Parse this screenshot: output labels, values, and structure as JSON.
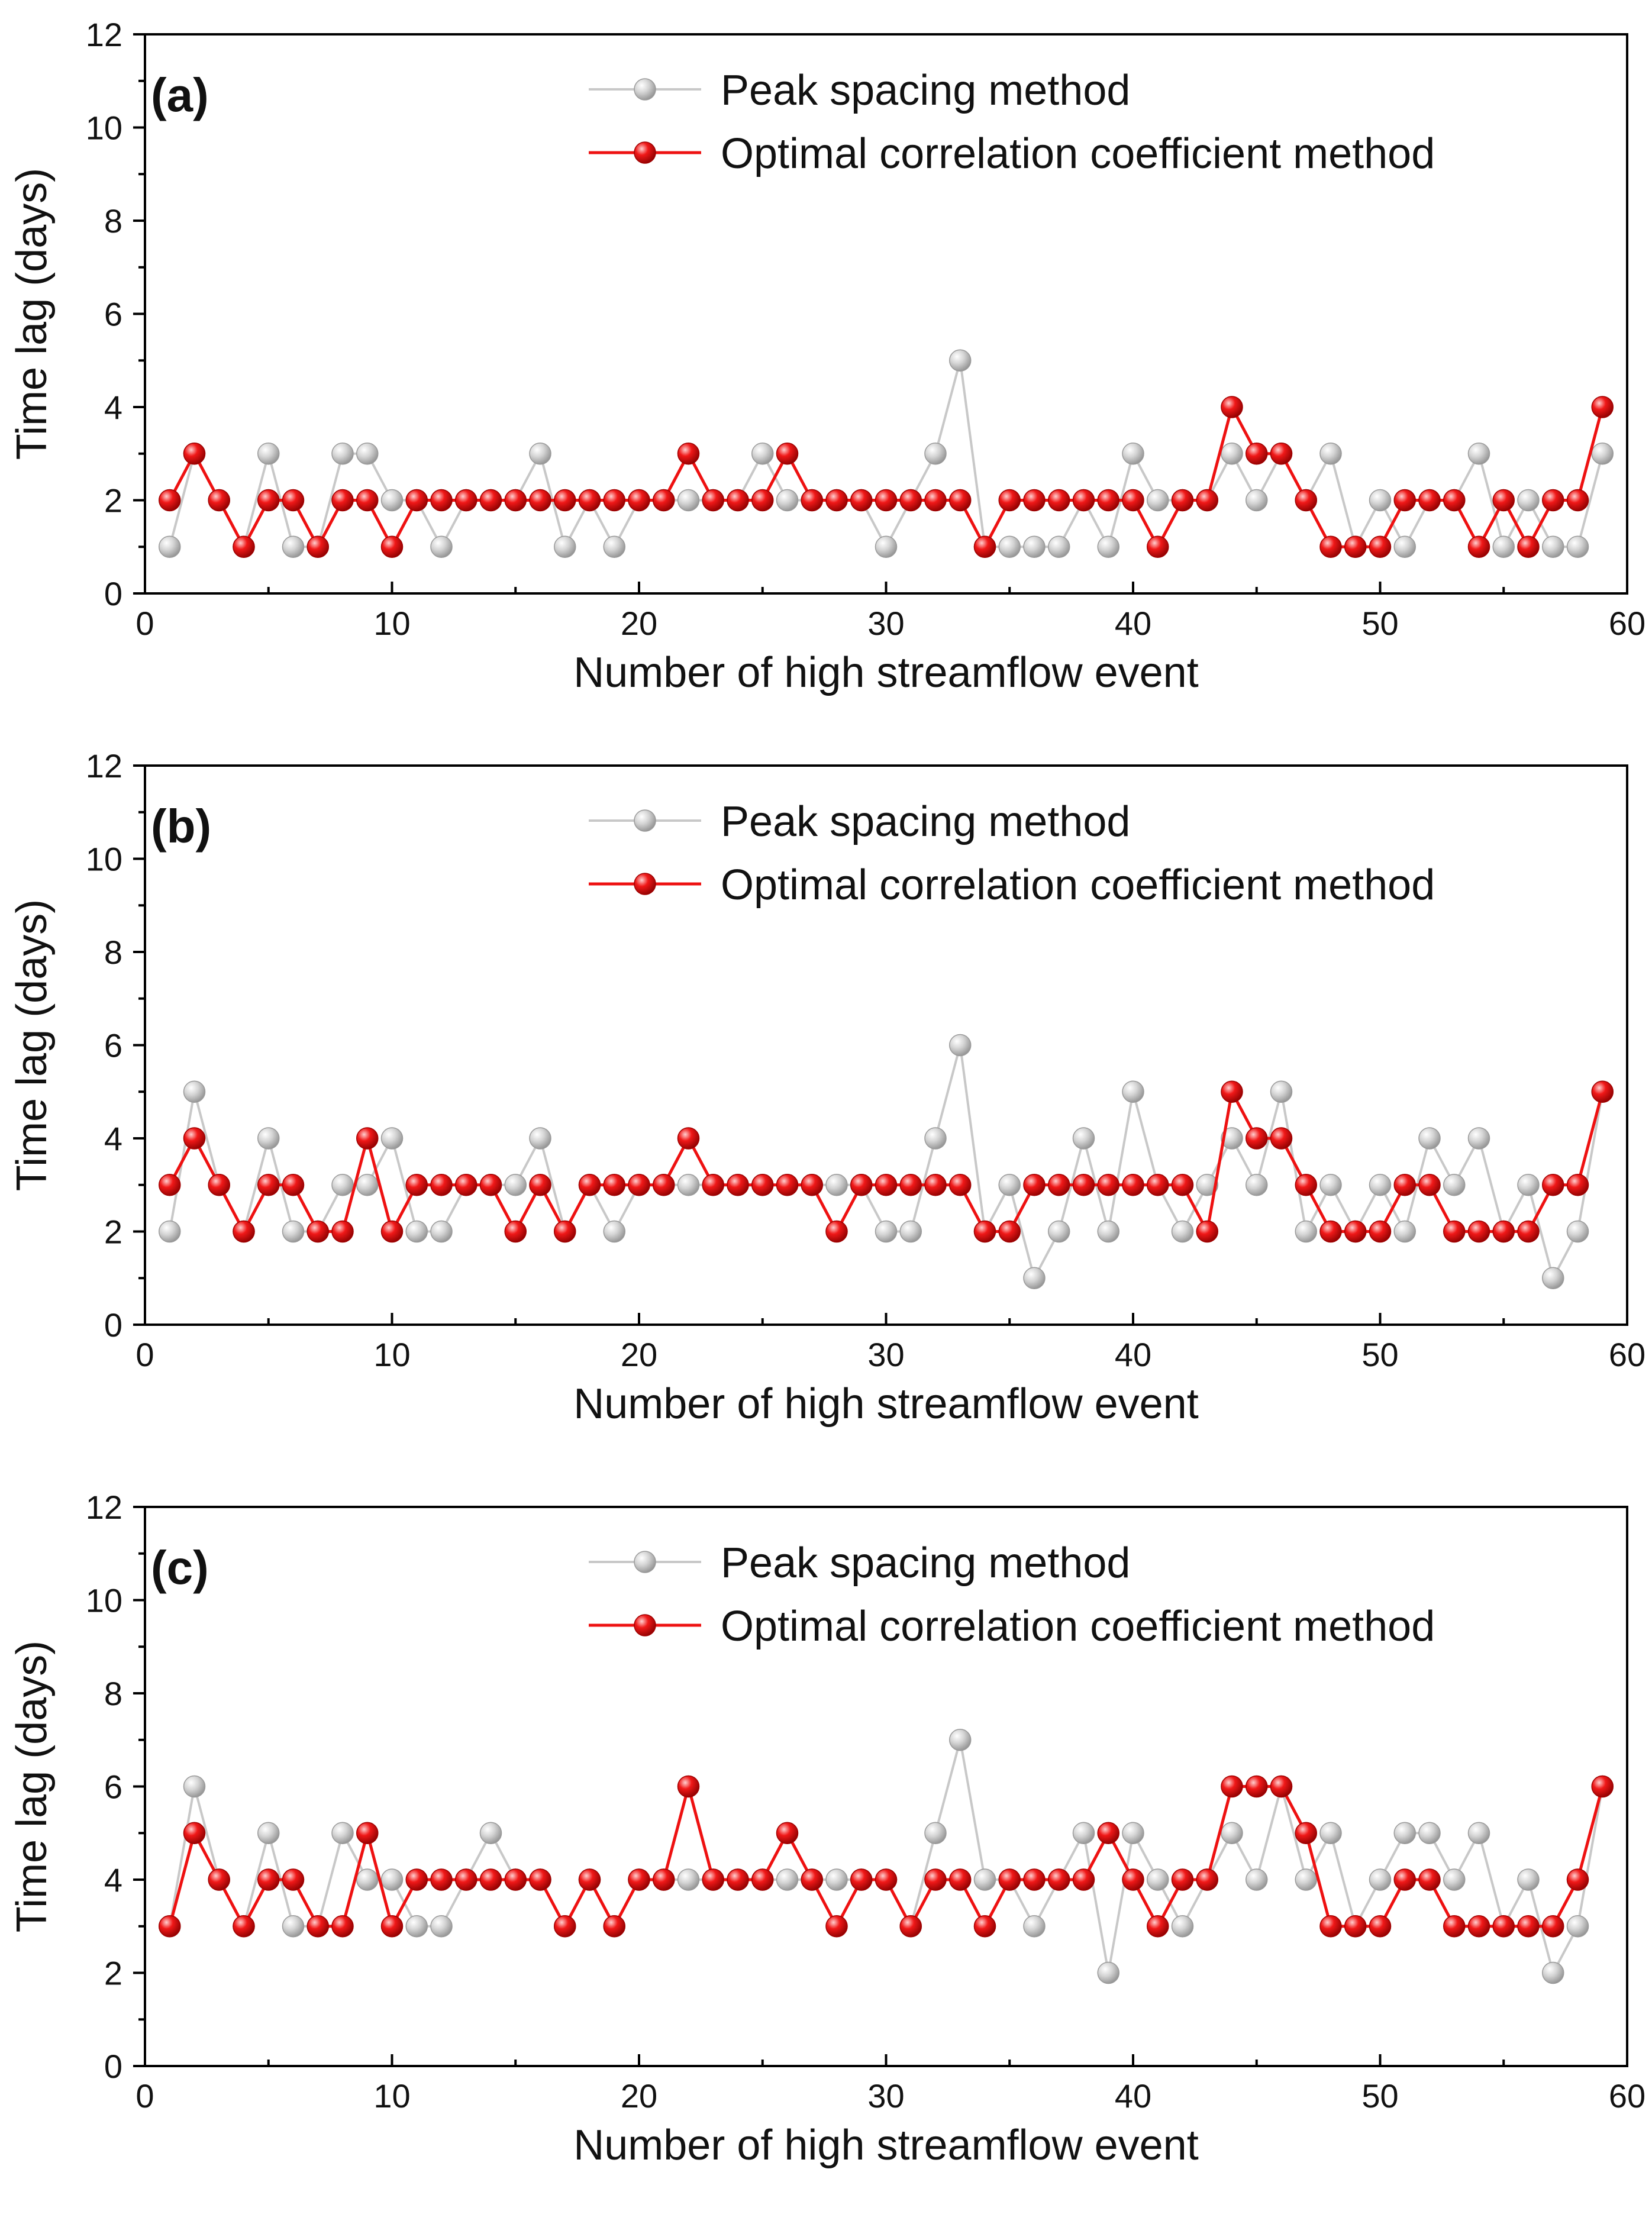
{
  "chart_data": [
    {
      "type": "line",
      "panel_label": "(a)",
      "title": "",
      "xlabel": "Number of high streamflow event",
      "ylabel": "Time lag (days)",
      "xlim": [
        0,
        60
      ],
      "ylim": [
        0,
        12
      ],
      "xticks": [
        0,
        10,
        20,
        30,
        40,
        50,
        60
      ],
      "yticks": [
        0,
        2,
        4,
        6,
        8,
        10,
        12
      ],
      "grid": false,
      "legend_position": "top-right",
      "x": [
        1,
        2,
        3,
        4,
        5,
        6,
        7,
        8,
        9,
        10,
        11,
        12,
        13,
        14,
        15,
        16,
        17,
        18,
        19,
        20,
        21,
        22,
        23,
        24,
        25,
        26,
        27,
        28,
        29,
        30,
        31,
        32,
        33,
        34,
        35,
        36,
        37,
        38,
        39,
        40,
        41,
        42,
        43,
        44,
        45,
        46,
        47,
        48,
        49,
        50,
        51,
        52,
        53,
        54,
        55,
        56,
        57,
        58,
        59
      ],
      "series": [
        {
          "name": "Peak spacing method",
          "color": "#c8c8c8",
          "values": [
            1,
            3,
            2,
            1,
            3,
            1,
            1,
            3,
            3,
            2,
            2,
            1,
            2,
            2,
            2,
            3,
            1,
            2,
            1,
            2,
            2,
            2,
            2,
            2,
            3,
            2,
            2,
            2,
            2,
            1,
            2,
            3,
            5,
            1,
            1,
            1,
            1,
            2,
            1,
            3,
            2,
            2,
            2,
            3,
            2,
            3,
            2,
            3,
            1,
            2,
            1,
            2,
            2,
            3,
            1,
            2,
            1,
            1,
            3
          ]
        },
        {
          "name": "Optimal correlation coefficient method",
          "color": "#ee1111",
          "values": [
            2,
            3,
            2,
            1,
            2,
            2,
            1,
            2,
            2,
            1,
            2,
            2,
            2,
            2,
            2,
            2,
            2,
            2,
            2,
            2,
            2,
            3,
            2,
            2,
            2,
            3,
            2,
            2,
            2,
            2,
            2,
            2,
            2,
            1,
            2,
            2,
            2,
            2,
            2,
            2,
            1,
            2,
            2,
            4,
            3,
            3,
            2,
            1,
            1,
            1,
            2,
            2,
            2,
            1,
            2,
            1,
            2,
            2,
            4
          ]
        }
      ]
    },
    {
      "type": "line",
      "panel_label": "(b)",
      "title": "",
      "xlabel": "Number of high streamflow event",
      "ylabel": "Time lag (days)",
      "xlim": [
        0,
        60
      ],
      "ylim": [
        0,
        12
      ],
      "xticks": [
        0,
        10,
        20,
        30,
        40,
        50,
        60
      ],
      "yticks": [
        0,
        2,
        4,
        6,
        8,
        10,
        12
      ],
      "grid": false,
      "legend_position": "top-right",
      "x": [
        1,
        2,
        3,
        4,
        5,
        6,
        7,
        8,
        9,
        10,
        11,
        12,
        13,
        14,
        15,
        16,
        17,
        18,
        19,
        20,
        21,
        22,
        23,
        24,
        25,
        26,
        27,
        28,
        29,
        30,
        31,
        32,
        33,
        34,
        35,
        36,
        37,
        38,
        39,
        40,
        41,
        42,
        43,
        44,
        45,
        46,
        47,
        48,
        49,
        50,
        51,
        52,
        53,
        54,
        55,
        56,
        57,
        58,
        59
      ],
      "series": [
        {
          "name": "Peak spacing method",
          "color": "#c8c8c8",
          "values": [
            2,
            5,
            3,
            2,
            4,
            2,
            2,
            3,
            3,
            4,
            2,
            2,
            3,
            3,
            3,
            4,
            2,
            3,
            2,
            3,
            3,
            3,
            3,
            3,
            3,
            3,
            3,
            3,
            3,
            2,
            2,
            4,
            6,
            2,
            3,
            1,
            2,
            4,
            2,
            5,
            3,
            2,
            3,
            4,
            3,
            5,
            2,
            3,
            2,
            3,
            2,
            4,
            3,
            4,
            2,
            3,
            1,
            2,
            5
          ]
        },
        {
          "name": "Optimal correlation coefficient method",
          "color": "#ee1111",
          "values": [
            3,
            4,
            3,
            2,
            3,
            3,
            2,
            2,
            4,
            2,
            3,
            3,
            3,
            3,
            2,
            3,
            2,
            3,
            3,
            3,
            3,
            4,
            3,
            3,
            3,
            3,
            3,
            2,
            3,
            3,
            3,
            3,
            3,
            2,
            2,
            3,
            3,
            3,
            3,
            3,
            3,
            3,
            2,
            5,
            4,
            4,
            3,
            2,
            2,
            2,
            3,
            3,
            2,
            2,
            2,
            2,
            3,
            3,
            5
          ]
        }
      ]
    },
    {
      "type": "line",
      "panel_label": "(c)",
      "title": "",
      "xlabel": "Number of high streamflow event",
      "ylabel": "Time lag (days)",
      "xlim": [
        0,
        60
      ],
      "ylim": [
        0,
        12
      ],
      "xticks": [
        0,
        10,
        20,
        30,
        40,
        50,
        60
      ],
      "yticks": [
        0,
        2,
        4,
        6,
        8,
        10,
        12
      ],
      "grid": false,
      "legend_position": "top-right",
      "x": [
        1,
        2,
        3,
        4,
        5,
        6,
        7,
        8,
        9,
        10,
        11,
        12,
        13,
        14,
        15,
        16,
        17,
        18,
        19,
        20,
        21,
        22,
        23,
        24,
        25,
        26,
        27,
        28,
        29,
        30,
        31,
        32,
        33,
        34,
        35,
        36,
        37,
        38,
        39,
        40,
        41,
        42,
        43,
        44,
        45,
        46,
        47,
        48,
        49,
        50,
        51,
        52,
        53,
        54,
        55,
        56,
        57,
        58,
        59
      ],
      "series": [
        {
          "name": "Peak spacing method",
          "color": "#c8c8c8",
          "values": [
            3,
            6,
            4,
            3,
            5,
            3,
            3,
            5,
            4,
            4,
            3,
            3,
            4,
            5,
            4,
            4,
            3,
            4,
            3,
            4,
            4,
            4,
            4,
            4,
            4,
            4,
            4,
            4,
            4,
            4,
            3,
            5,
            7,
            4,
            4,
            3,
            4,
            5,
            2,
            5,
            4,
            3,
            4,
            5,
            4,
            6,
            4,
            5,
            3,
            4,
            5,
            5,
            4,
            5,
            3,
            4,
            2,
            3,
            6
          ]
        },
        {
          "name": "Optimal correlation coefficient method",
          "color": "#ee1111",
          "values": [
            3,
            5,
            4,
            3,
            4,
            4,
            3,
            3,
            5,
            3,
            4,
            4,
            4,
            4,
            4,
            4,
            3,
            4,
            3,
            4,
            4,
            6,
            4,
            4,
            4,
            5,
            4,
            3,
            4,
            4,
            3,
            4,
            4,
            3,
            4,
            4,
            4,
            4,
            5,
            4,
            3,
            4,
            4,
            6,
            6,
            6,
            5,
            3,
            3,
            3,
            4,
            4,
            3,
            3,
            3,
            3,
            3,
            4,
            6
          ]
        }
      ]
    }
  ]
}
